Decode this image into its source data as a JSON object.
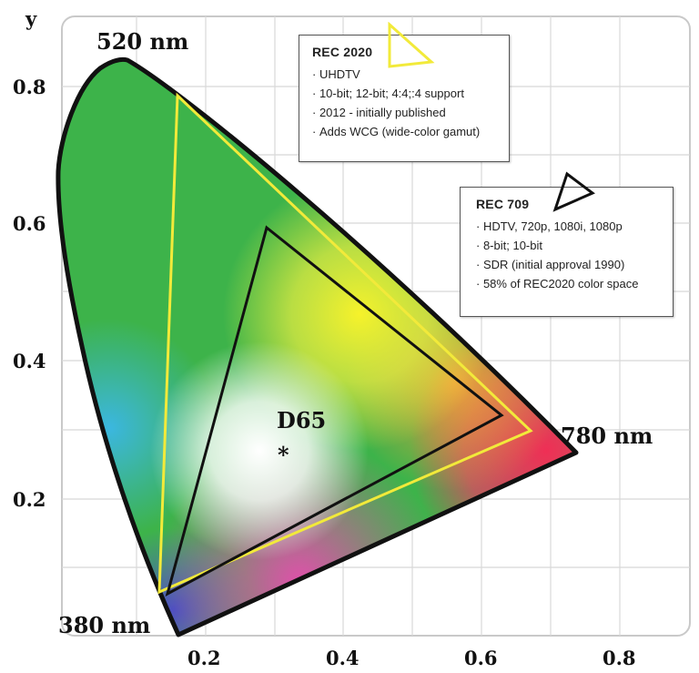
{
  "axes": {
    "y_label": "y",
    "y_ticks": [
      "0.8",
      "0.6",
      "0.4",
      "0.2"
    ],
    "x_ticks": [
      "0.2",
      "0.4",
      "0.6",
      "0.8"
    ]
  },
  "locus_labels": {
    "green": "520 nm",
    "red": "780 nm",
    "blue": "380 nm"
  },
  "white_point": {
    "label": "D65",
    "marker": "*"
  },
  "rec2020": {
    "title": "REC 2020",
    "color": "#f2ea3a",
    "icon": "triangle-outline-yellow",
    "items": [
      "UHDTV",
      "10-bit; 12-bit; 4:4;:4 support",
      "2012 - initially published",
      "Adds WCG (wide-color gamut)"
    ]
  },
  "rec709": {
    "title": "REC 709",
    "color": "#111111",
    "icon": "triangle-outline-black",
    "items": [
      "HDTV, 720p, 1080i, 1080p",
      "8-bit; 10-bit",
      "SDR (initial approval 1990)",
      "58% of REC2020 color space"
    ]
  }
}
